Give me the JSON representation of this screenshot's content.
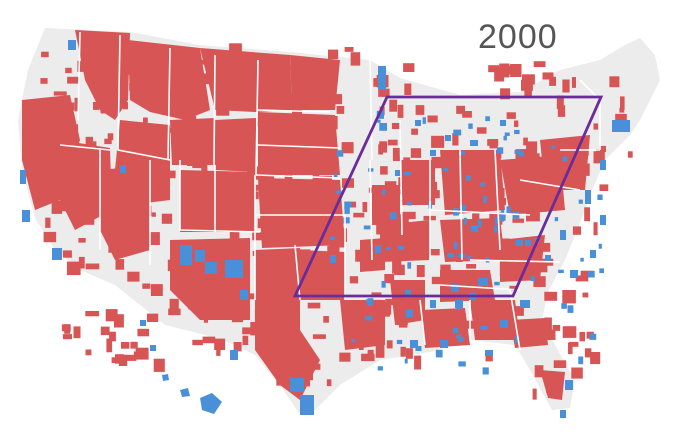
{
  "map": {
    "year": "2000",
    "colors": {
      "land": "#ececec",
      "county_red": "#d75555",
      "county_blue": "#4a90d9",
      "state_border": "#ffffff",
      "highlight_outline": "#6a2c9a"
    },
    "highlight": {
      "shape": "parallelogram"
    }
  }
}
